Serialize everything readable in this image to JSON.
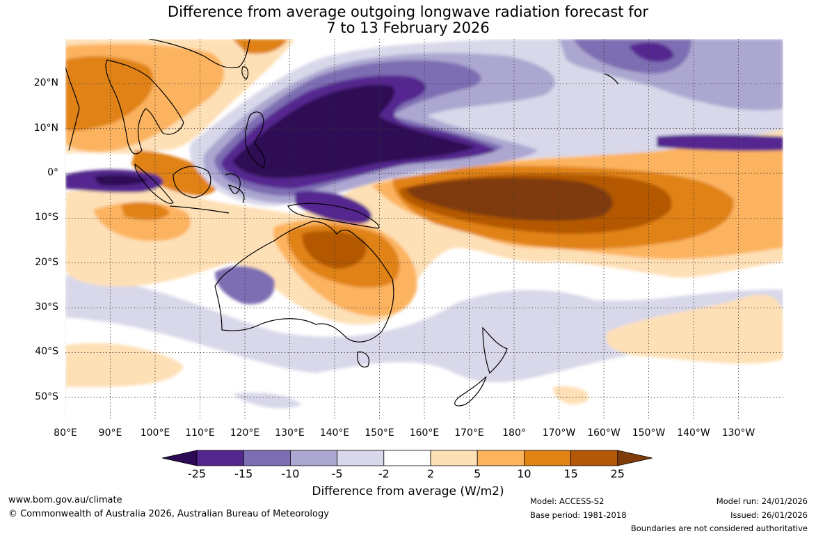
{
  "title": {
    "line1": "Difference from average outgoing longwave radiation forecast for",
    "line2": "7 to 13 February 2026"
  },
  "map": {
    "type": "filled-contour anomaly map",
    "lat_labels": [
      "20°N",
      "10°N",
      "0°",
      "10°S",
      "20°S",
      "30°S",
      "40°S",
      "50°S"
    ],
    "lat_values": [
      20,
      10,
      0,
      -10,
      -20,
      -30,
      -40,
      -50
    ],
    "lon_labels": [
      "80°E",
      "90°E",
      "100°E",
      "110°E",
      "120°E",
      "130°E",
      "140°E",
      "150°E",
      "160°E",
      "170°E",
      "180°",
      "170°W",
      "160°W",
      "150°W",
      "140°W",
      "130°W"
    ],
    "lon_values": [
      80,
      90,
      100,
      110,
      120,
      130,
      140,
      150,
      160,
      170,
      180,
      190,
      200,
      210,
      220,
      230
    ],
    "lon_range": [
      80,
      240
    ],
    "lat_range": [
      -55,
      30
    ]
  },
  "colorbar": {
    "ticks": [
      "-25",
      "-15",
      "-10",
      "-5",
      "-2",
      "2",
      "5",
      "10",
      "15",
      "25"
    ],
    "colors": [
      "#2d0a55",
      "#54278f",
      "#7d6db2",
      "#aca7d0",
      "#d8d8ea",
      "#ffffff",
      "#fee0b6",
      "#fcb35e",
      "#e08214",
      "#b35806",
      "#7f3b08"
    ],
    "label": "Difference from average (W/m2)"
  },
  "footer": {
    "website": "www.bom.gov.au/climate",
    "copyright": "© Commonwealth of Australia 2026, Australian Bureau of Meteorology",
    "model": "Model: ACCESS-S2",
    "base_period": "Base period: 1981-2018",
    "model_run": "Model run: 24/01/2026",
    "issued": "Issued: 26/01/2026",
    "disclaimer": "Boundaries are not considered authoritative"
  }
}
